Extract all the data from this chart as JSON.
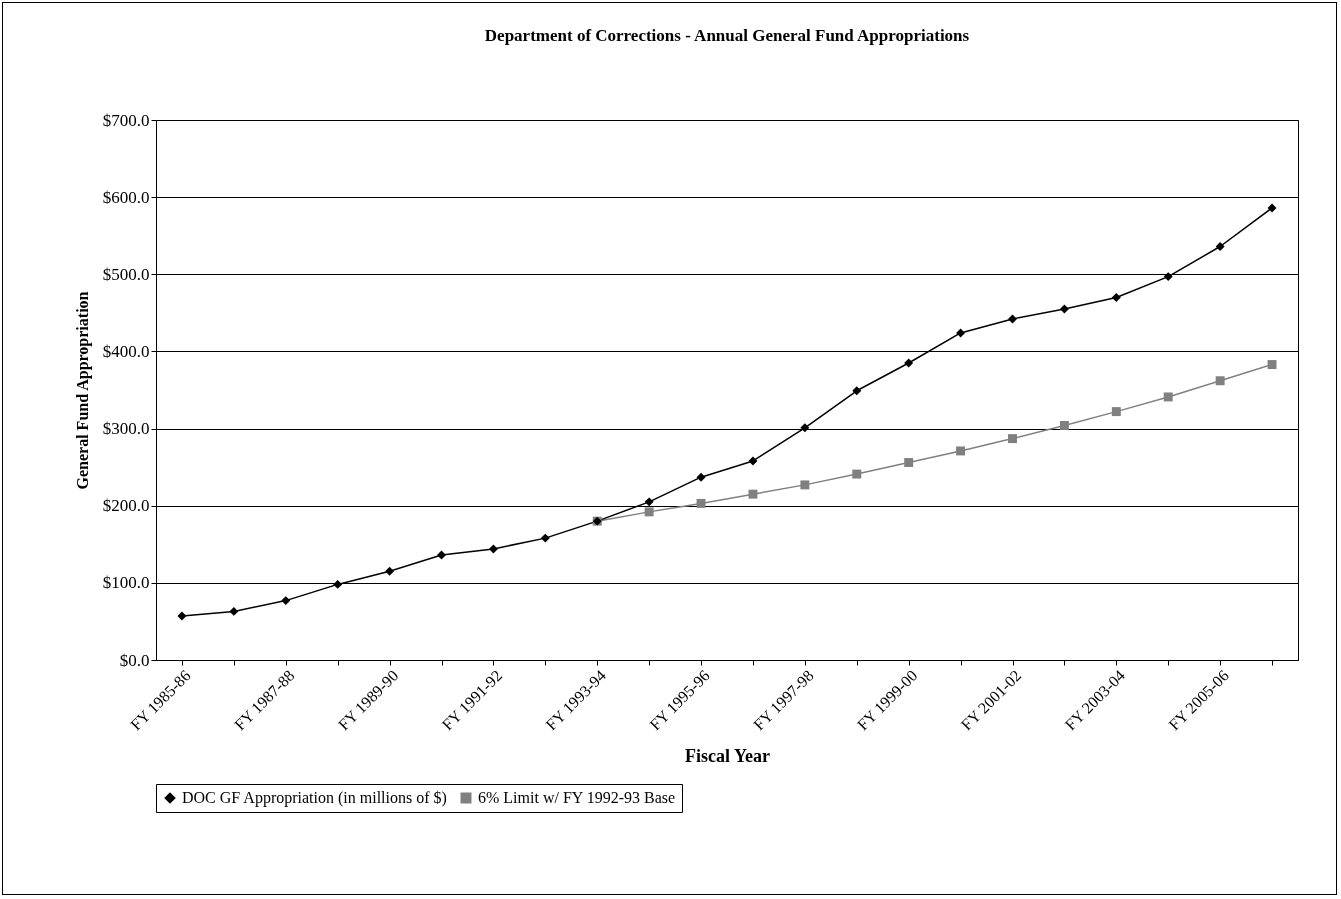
{
  "chart_data": {
    "type": "line",
    "title": "Department of Corrections - Annual General Fund Appropriations",
    "xlabel": "Fiscal Year",
    "ylabel": "General Fund Appropriation",
    "categories": [
      "FY 1985-86",
      null,
      "FY 1987-88",
      null,
      "FY 1989-90",
      null,
      "FY 1991-92",
      null,
      "FY 1993-94",
      null,
      "FY 1995-96",
      null,
      "FY 1997-98",
      null,
      "FY 1999-00",
      null,
      "FY 2001-02",
      null,
      "FY 2003-04",
      null,
      "FY 2005-06",
      null
    ],
    "series": [
      {
        "name": "DOC GF Appropriation (in millions of $)",
        "color": "#000000",
        "marker": "diamond",
        "values": [
          57,
          63,
          77,
          98,
          115,
          136,
          144,
          158,
          180,
          205,
          237,
          258,
          301,
          349,
          385,
          424,
          442,
          455,
          470,
          497,
          536,
          586
        ]
      },
      {
        "name": "6% Limit w/ FY 1992-93 Base",
        "color": "#808080",
        "marker": "square",
        "values": [
          null,
          null,
          null,
          null,
          null,
          null,
          null,
          null,
          180,
          192,
          203,
          215,
          227,
          241,
          256,
          271,
          287,
          304,
          322,
          341,
          362,
          383
        ]
      }
    ],
    "ylim": [
      0,
      700
    ],
    "yticks": [
      {
        "value": 0,
        "label": "$0.0"
      },
      {
        "value": 100,
        "label": "$100.0"
      },
      {
        "value": 200,
        "label": "$200.0"
      },
      {
        "value": 300,
        "label": "$300.0"
      },
      {
        "value": 400,
        "label": "$400.0"
      },
      {
        "value": 500,
        "label": "$500.0"
      },
      {
        "value": 600,
        "label": "$600.0"
      },
      {
        "value": 700,
        "label": "$700.0"
      }
    ],
    "grid": "y",
    "legend": "bottom"
  }
}
